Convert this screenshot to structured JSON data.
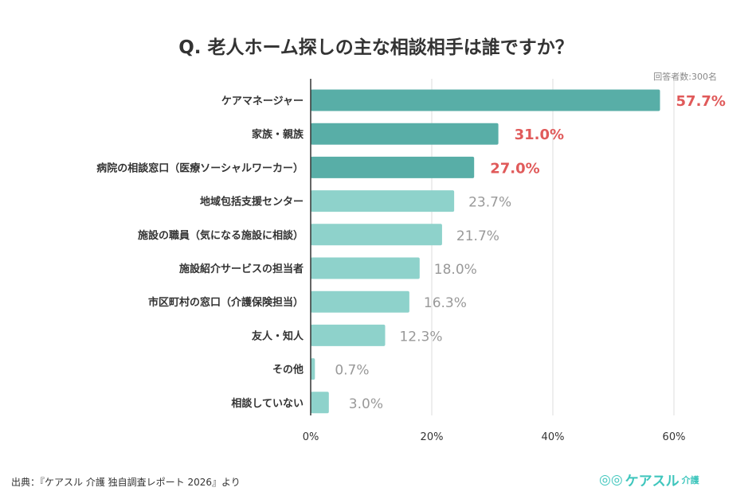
{
  "chart_data": {
    "type": "bar",
    "orientation": "horizontal",
    "title": "Q. 老人ホーム探しの主な相談相手は誰ですか？",
    "annotation": "回答者数:300名",
    "categories": [
      "ケアマネージャー",
      "家族・親族",
      "病院の相談窓口（医療ソーシャルワーカー）",
      "地域包括支援センター",
      "施設の職員（気になる施設に相談）",
      "施設紹介サービスの担当者",
      "市区町村の窓口（介護保険担当）",
      "友人・知人",
      "その他",
      "相談していない"
    ],
    "values": [
      57.7,
      31.0,
      27.0,
      23.7,
      21.7,
      18.0,
      16.3,
      12.3,
      0.7,
      3.0
    ],
    "labels": [
      "57.7%",
      "31.0%",
      "27.0%",
      "23.7%",
      "21.7%",
      "18.0%",
      "16.3%",
      "12.3%",
      "0.7%",
      "3.0%"
    ],
    "highlighted_top": 3,
    "xlim": [
      0,
      60
    ],
    "xticks": [
      "0%",
      "20%",
      "40%",
      "60%"
    ],
    "grid": true,
    "colors": {
      "highlight_bar": "#58aea7",
      "bar": "#8ed2cb",
      "highlight_label": "#e05a5a",
      "label": "#999999"
    }
  },
  "footer": {
    "source": "出典：『ケアスル 介護 独自調査レポート 2026』より",
    "logo": "ケアスル",
    "logo_sub": "介護"
  }
}
